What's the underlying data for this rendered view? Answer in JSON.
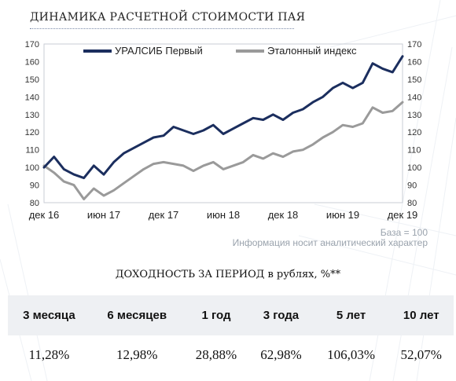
{
  "header": {
    "title": "ДИНАМИКА РАСЧЕТНОЙ СТОИМОСТИ ПАЯ"
  },
  "notes": {
    "base": "База = 100",
    "info": "Информация носит аналитический характер"
  },
  "returns": {
    "title": "ДОХОДНОСТЬ ЗА ПЕРИОД в рублях, %**",
    "periods": [
      "3 месяца",
      "6 месяцев",
      "1 год",
      "3 года",
      "5 лет",
      "10 лет"
    ],
    "values": [
      "11,28%",
      "12,98%",
      "28,88%",
      "62,98%",
      "106,03%",
      "52,07%"
    ]
  },
  "chart_data": {
    "type": "line",
    "ylim": [
      80,
      170
    ],
    "yticks": [
      80,
      90,
      100,
      110,
      120,
      130,
      140,
      150,
      160,
      170
    ],
    "x_tick_labels": [
      "дек 16",
      "июн 17",
      "дек 17",
      "июн 18",
      "дек 18",
      "июн 19",
      "дек 19"
    ],
    "x_tick_dates": [
      "2016-12",
      "2017-06",
      "2017-12",
      "2018-06",
      "2018-12",
      "2019-06",
      "2019-12"
    ],
    "legend_position": "top",
    "series": [
      {
        "name": "УРАЛСИБ Первый",
        "color": "#1b2e5e",
        "x": [
          "2016-12",
          "2017-01",
          "2017-02",
          "2017-03",
          "2017-04",
          "2017-05",
          "2017-06",
          "2017-07",
          "2017-08",
          "2017-09",
          "2017-10",
          "2017-11",
          "2017-12",
          "2018-01",
          "2018-02",
          "2018-03",
          "2018-04",
          "2018-05",
          "2018-06",
          "2018-07",
          "2018-08",
          "2018-09",
          "2018-10",
          "2018-11",
          "2018-12",
          "2019-01",
          "2019-02",
          "2019-03",
          "2019-04",
          "2019-05",
          "2019-06",
          "2019-07",
          "2019-08",
          "2019-09",
          "2019-10",
          "2019-11",
          "2019-12"
        ],
        "values": [
          100,
          106,
          99,
          96,
          94,
          101,
          96,
          103,
          108,
          111,
          114,
          117,
          118,
          123,
          121,
          119,
          121,
          124,
          119,
          122,
          125,
          128,
          127,
          130,
          127,
          131,
          133,
          137,
          140,
          145,
          148,
          145,
          148,
          159,
          156,
          154,
          163
        ]
      },
      {
        "name": "Эталонный индекс",
        "color": "#9a9a9a",
        "x": [
          "2016-12",
          "2017-01",
          "2017-02",
          "2017-03",
          "2017-04",
          "2017-05",
          "2017-06",
          "2017-07",
          "2017-08",
          "2017-09",
          "2017-10",
          "2017-11",
          "2017-12",
          "2018-01",
          "2018-02",
          "2018-03",
          "2018-04",
          "2018-05",
          "2018-06",
          "2018-07",
          "2018-08",
          "2018-09",
          "2018-10",
          "2018-11",
          "2018-12",
          "2019-01",
          "2019-02",
          "2019-03",
          "2019-04",
          "2019-05",
          "2019-06",
          "2019-07",
          "2019-08",
          "2019-09",
          "2019-10",
          "2019-11",
          "2019-12"
        ],
        "values": [
          101,
          97,
          92,
          90,
          82,
          88,
          84,
          87,
          91,
          95,
          99,
          102,
          103,
          102,
          101,
          98,
          101,
          103,
          99,
          101,
          103,
          107,
          105,
          108,
          106,
          109,
          110,
          113,
          117,
          120,
          124,
          123,
          125,
          134,
          131,
          132,
          137
        ]
      }
    ]
  }
}
